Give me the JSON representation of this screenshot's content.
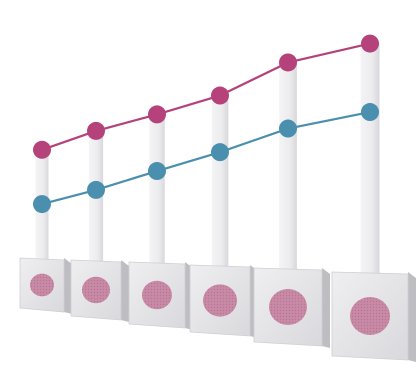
{
  "chart_data": {
    "type": "line",
    "title": "",
    "xlabel": "",
    "ylabel": "",
    "ylim": [
      0,
      10
    ],
    "grid": false,
    "legend": "none",
    "categories_count": 6,
    "series": [
      {
        "values": [
          4.5,
          5.3,
          6.0,
          6.8,
          8.2,
          9.0
        ],
        "color": "#b5427a"
      },
      {
        "values": [
          2.2,
          2.8,
          3.6,
          4.4,
          5.4,
          6.1
        ],
        "color": "#4a8fad"
      }
    ],
    "category_markers": [
      {
        "level": 0.6
      },
      {
        "level": 0.7
      },
      {
        "level": 0.75
      },
      {
        "level": 0.85
      },
      {
        "level": 0.95
      },
      {
        "level": 1.0
      }
    ],
    "colors": {
      "marker_fill": "#c98aa6",
      "card": "#e6e6e8",
      "pillar": "#eeeef0",
      "shadow": "#bdbdc2"
    }
  }
}
